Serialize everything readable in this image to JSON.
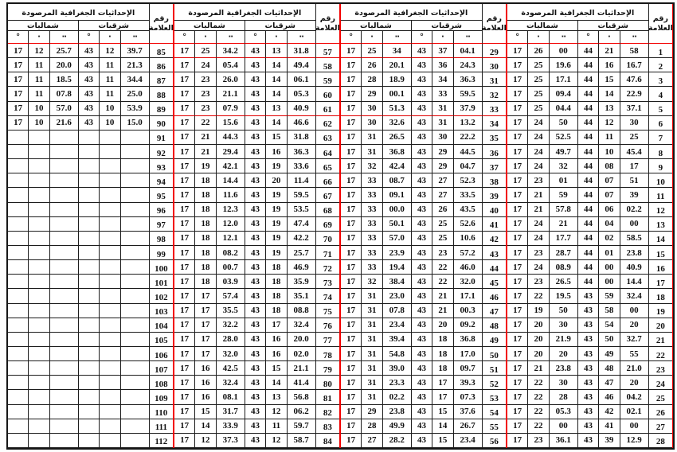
{
  "table": {
    "header": {
      "title": "الإحداثيات الجغرافية المرصودة",
      "north": "شماليات",
      "east": "شرقيات",
      "mark_line1": "رقم",
      "mark_line2": "العلامة",
      "sym_deg": "°",
      "sym_min": "·",
      "sym_sec": "··"
    },
    "colors": {
      "grid": "#1c1c1c",
      "overlay_red": "#f20000"
    },
    "groups": [
      {
        "rows": [
          [
            "17",
            "12",
            "25.7",
            "43",
            "12",
            "39.7",
            "85"
          ],
          [
            "17",
            "11",
            "20.0",
            "43",
            "11",
            "21.3",
            "86"
          ],
          [
            "17",
            "11",
            "18.5",
            "43",
            "11",
            "34.4",
            "87"
          ],
          [
            "17",
            "11",
            "07.8",
            "43",
            "11",
            "25.0",
            "88"
          ],
          [
            "17",
            "10",
            "57.0",
            "43",
            "10",
            "53.9",
            "89"
          ],
          [
            "17",
            "10",
            "21.6",
            "43",
            "10",
            "15.0",
            "90"
          ],
          [
            "",
            "",
            "",
            "",
            "",
            "",
            "91"
          ],
          [
            "",
            "",
            "",
            "",
            "",
            "",
            "92"
          ],
          [
            "",
            "",
            "",
            "",
            "",
            "",
            "93"
          ],
          [
            "",
            "",
            "",
            "",
            "",
            "",
            "94"
          ],
          [
            "",
            "",
            "",
            "",
            "",
            "",
            "95"
          ],
          [
            "",
            "",
            "",
            "",
            "",
            "",
            "96"
          ],
          [
            "",
            "",
            "",
            "",
            "",
            "",
            "97"
          ],
          [
            "",
            "",
            "",
            "",
            "",
            "",
            "98"
          ],
          [
            "",
            "",
            "",
            "",
            "",
            "",
            "99"
          ],
          [
            "",
            "",
            "",
            "",
            "",
            "",
            "100"
          ],
          [
            "",
            "",
            "",
            "",
            "",
            "",
            "101"
          ],
          [
            "",
            "",
            "",
            "",
            "",
            "",
            "102"
          ],
          [
            "",
            "",
            "",
            "",
            "",
            "",
            "103"
          ],
          [
            "",
            "",
            "",
            "",
            "",
            "",
            "104"
          ],
          [
            "",
            "",
            "",
            "",
            "",
            "",
            "105"
          ],
          [
            "",
            "",
            "",
            "",
            "",
            "",
            "106"
          ],
          [
            "",
            "",
            "",
            "",
            "",
            "",
            "107"
          ],
          [
            "",
            "",
            "",
            "",
            "",
            "",
            "108"
          ],
          [
            "",
            "",
            "",
            "",
            "",
            "",
            "109"
          ],
          [
            "",
            "",
            "",
            "",
            "",
            "",
            "110"
          ],
          [
            "",
            "",
            "",
            "",
            "",
            "",
            "111"
          ],
          [
            "",
            "",
            "",
            "",
            "",
            "",
            "112"
          ]
        ]
      },
      {
        "rows": [
          [
            "17",
            "25",
            "34.2",
            "43",
            "13",
            "31.8",
            "57"
          ],
          [
            "17",
            "24",
            "05.4",
            "43",
            "14",
            "49.4",
            "58"
          ],
          [
            "17",
            "23",
            "26.0",
            "43",
            "14",
            "06.1",
            "59"
          ],
          [
            "17",
            "23",
            "21.1",
            "43",
            "14",
            "05.3",
            "60"
          ],
          [
            "17",
            "23",
            "07.9",
            "43",
            "13",
            "40.9",
            "61"
          ],
          [
            "17",
            "22",
            "15.6",
            "43",
            "14",
            "46.6",
            "62"
          ],
          [
            "17",
            "21",
            "44.3",
            "43",
            "15",
            "31.8",
            "63"
          ],
          [
            "17",
            "21",
            "29.4",
            "43",
            "16",
            "36.3",
            "64"
          ],
          [
            "17",
            "19",
            "42.1",
            "43",
            "19",
            "33.6",
            "65"
          ],
          [
            "17",
            "18",
            "14.4",
            "43",
            "20",
            "11.4",
            "66"
          ],
          [
            "17",
            "18",
            "11.6",
            "43",
            "19",
            "59.5",
            "67"
          ],
          [
            "17",
            "18",
            "12.3",
            "43",
            "19",
            "53.5",
            "68"
          ],
          [
            "17",
            "18",
            "12.0",
            "43",
            "19",
            "47.4",
            "69"
          ],
          [
            "17",
            "18",
            "12.1",
            "43",
            "19",
            "42.2",
            "70"
          ],
          [
            "17",
            "18",
            "08.2",
            "43",
            "19",
            "25.7",
            "71"
          ],
          [
            "17",
            "18",
            "00.7",
            "43",
            "18",
            "46.9",
            "72"
          ],
          [
            "17",
            "18",
            "03.9",
            "43",
            "18",
            "35.9",
            "73"
          ],
          [
            "17",
            "17",
            "57.4",
            "43",
            "18",
            "35.1",
            "74"
          ],
          [
            "17",
            "17",
            "35.5",
            "43",
            "18",
            "08.8",
            "75"
          ],
          [
            "17",
            "17",
            "32.2",
            "43",
            "17",
            "32.4",
            "76"
          ],
          [
            "17",
            "17",
            "28.0",
            "43",
            "16",
            "20.0",
            "77"
          ],
          [
            "17",
            "17",
            "32.0",
            "43",
            "16",
            "02.0",
            "78"
          ],
          [
            "17",
            "16",
            "42.5",
            "43",
            "15",
            "21.1",
            "79"
          ],
          [
            "17",
            "16",
            "32.4",
            "43",
            "14",
            "41.4",
            "80"
          ],
          [
            "17",
            "16",
            "08.1",
            "43",
            "13",
            "56.8",
            "81"
          ],
          [
            "17",
            "15",
            "31.7",
            "43",
            "12",
            "06.2",
            "82"
          ],
          [
            "17",
            "14",
            "33.9",
            "43",
            "11",
            "59.7",
            "83"
          ],
          [
            "17",
            "12",
            "37.3",
            "43",
            "12",
            "58.7",
            "84"
          ]
        ]
      },
      {
        "rows": [
          [
            "17",
            "25",
            "34",
            "43",
            "37",
            "04.1",
            "29"
          ],
          [
            "17",
            "26",
            "20.1",
            "43",
            "36",
            "24.3",
            "30"
          ],
          [
            "17",
            "28",
            "18.9",
            "43",
            "34",
            "36.3",
            "31"
          ],
          [
            "17",
            "29",
            "00.1",
            "43",
            "33",
            "59.5",
            "32"
          ],
          [
            "17",
            "30",
            "51.3",
            "43",
            "31",
            "37.9",
            "33"
          ],
          [
            "17",
            "30",
            "32.6",
            "43",
            "31",
            "13.2",
            "34"
          ],
          [
            "17",
            "31",
            "26.5",
            "43",
            "30",
            "22.2",
            "35"
          ],
          [
            "17",
            "31",
            "36.8",
            "43",
            "29",
            "44.5",
            "36"
          ],
          [
            "17",
            "32",
            "42.4",
            "43",
            "29",
            "04.7",
            "37"
          ],
          [
            "17",
            "33",
            "08.7",
            "43",
            "27",
            "52.3",
            "38"
          ],
          [
            "17",
            "33",
            "09.1",
            "43",
            "27",
            "33.5",
            "39"
          ],
          [
            "17",
            "33",
            "00.0",
            "43",
            "26",
            "43.5",
            "40"
          ],
          [
            "17",
            "33",
            "50.1",
            "43",
            "25",
            "52.6",
            "41"
          ],
          [
            "17",
            "33",
            "57.0",
            "43",
            "25",
            "10.6",
            "42"
          ],
          [
            "17",
            "33",
            "23.9",
            "43",
            "23",
            "57.2",
            "43"
          ],
          [
            "17",
            "33",
            "19.4",
            "43",
            "22",
            "46.0",
            "44"
          ],
          [
            "17",
            "32",
            "38.4",
            "43",
            "22",
            "32.0",
            "45"
          ],
          [
            "17",
            "31",
            "23.0",
            "43",
            "21",
            "17.1",
            "46"
          ],
          [
            "17",
            "31",
            "07.8",
            "43",
            "21",
            "00.3",
            "47"
          ],
          [
            "17",
            "31",
            "23.4",
            "43",
            "20",
            "09.2",
            "48"
          ],
          [
            "17",
            "31",
            "39.4",
            "43",
            "18",
            "36.8",
            "49"
          ],
          [
            "17",
            "31",
            "54.8",
            "43",
            "18",
            "17.0",
            "50"
          ],
          [
            "17",
            "31",
            "39.0",
            "43",
            "18",
            "09.7",
            "51"
          ],
          [
            "17",
            "31",
            "23.3",
            "43",
            "17",
            "39.3",
            "52"
          ],
          [
            "17",
            "31",
            "02.2",
            "43",
            "17",
            "07.3",
            "53"
          ],
          [
            "17",
            "29",
            "23.8",
            "43",
            "15",
            "37.6",
            "54"
          ],
          [
            "17",
            "28",
            "49.9",
            "43",
            "14",
            "26.7",
            "55"
          ],
          [
            "17",
            "27",
            "28.2",
            "43",
            "15",
            "23.4",
            "56"
          ]
        ]
      },
      {
        "rows": [
          [
            "17",
            "26",
            "00",
            "44",
            "21",
            "58",
            "1"
          ],
          [
            "17",
            "25",
            "19.6",
            "44",
            "16",
            "16.7",
            "2"
          ],
          [
            "17",
            "25",
            "17.1",
            "44",
            "15",
            "47.6",
            "3"
          ],
          [
            "17",
            "25",
            "09.4",
            "44",
            "14",
            "22.9",
            "4"
          ],
          [
            "17",
            "25",
            "04.4",
            "44",
            "13",
            "37.1",
            "5"
          ],
          [
            "17",
            "24",
            "50",
            "44",
            "12",
            "30",
            "6"
          ],
          [
            "17",
            "24",
            "52.5",
            "44",
            "11",
            "25",
            "7"
          ],
          [
            "17",
            "24",
            "49.7",
            "44",
            "10",
            "45.4",
            "8"
          ],
          [
            "17",
            "24",
            "32",
            "44",
            "08",
            "17",
            "9"
          ],
          [
            "17",
            "23",
            "01",
            "44",
            "07",
            "51",
            "10"
          ],
          [
            "17",
            "21",
            "59",
            "44",
            "07",
            "39",
            "11"
          ],
          [
            "17",
            "21",
            "57.8",
            "44",
            "06",
            "02.2",
            "12"
          ],
          [
            "17",
            "24",
            "21",
            "44",
            "04",
            "00",
            "13"
          ],
          [
            "17",
            "24",
            "17.7",
            "44",
            "02",
            "58.5",
            "14"
          ],
          [
            "17",
            "23",
            "28.7",
            "44",
            "01",
            "23.8",
            "15"
          ],
          [
            "17",
            "24",
            "08.9",
            "44",
            "00",
            "40.9",
            "16"
          ],
          [
            "17",
            "23",
            "26.5",
            "44",
            "00",
            "14.4",
            "17"
          ],
          [
            "17",
            "22",
            "19.5",
            "43",
            "59",
            "32.4",
            "18"
          ],
          [
            "17",
            "19",
            "50",
            "43",
            "58",
            "00",
            "19"
          ],
          [
            "17",
            "20",
            "30",
            "43",
            "54",
            "20",
            "20"
          ],
          [
            "17",
            "20",
            "21.9",
            "43",
            "50",
            "32.7",
            "21"
          ],
          [
            "17",
            "20",
            "20",
            "43",
            "49",
            "55",
            "22"
          ],
          [
            "17",
            "21",
            "23.8",
            "43",
            "48",
            "21.0",
            "23"
          ],
          [
            "17",
            "22",
            "30",
            "43",
            "47",
            "20",
            "24"
          ],
          [
            "17",
            "22",
            "28",
            "43",
            "46",
            "04.2",
            "25"
          ],
          [
            "17",
            "22",
            "05.3",
            "43",
            "42",
            "02.1",
            "26"
          ],
          [
            "17",
            "22",
            "00",
            "43",
            "41",
            "00",
            "27"
          ],
          [
            "17",
            "23",
            "36.1",
            "43",
            "39",
            "12.9",
            "28"
          ]
        ]
      }
    ]
  }
}
